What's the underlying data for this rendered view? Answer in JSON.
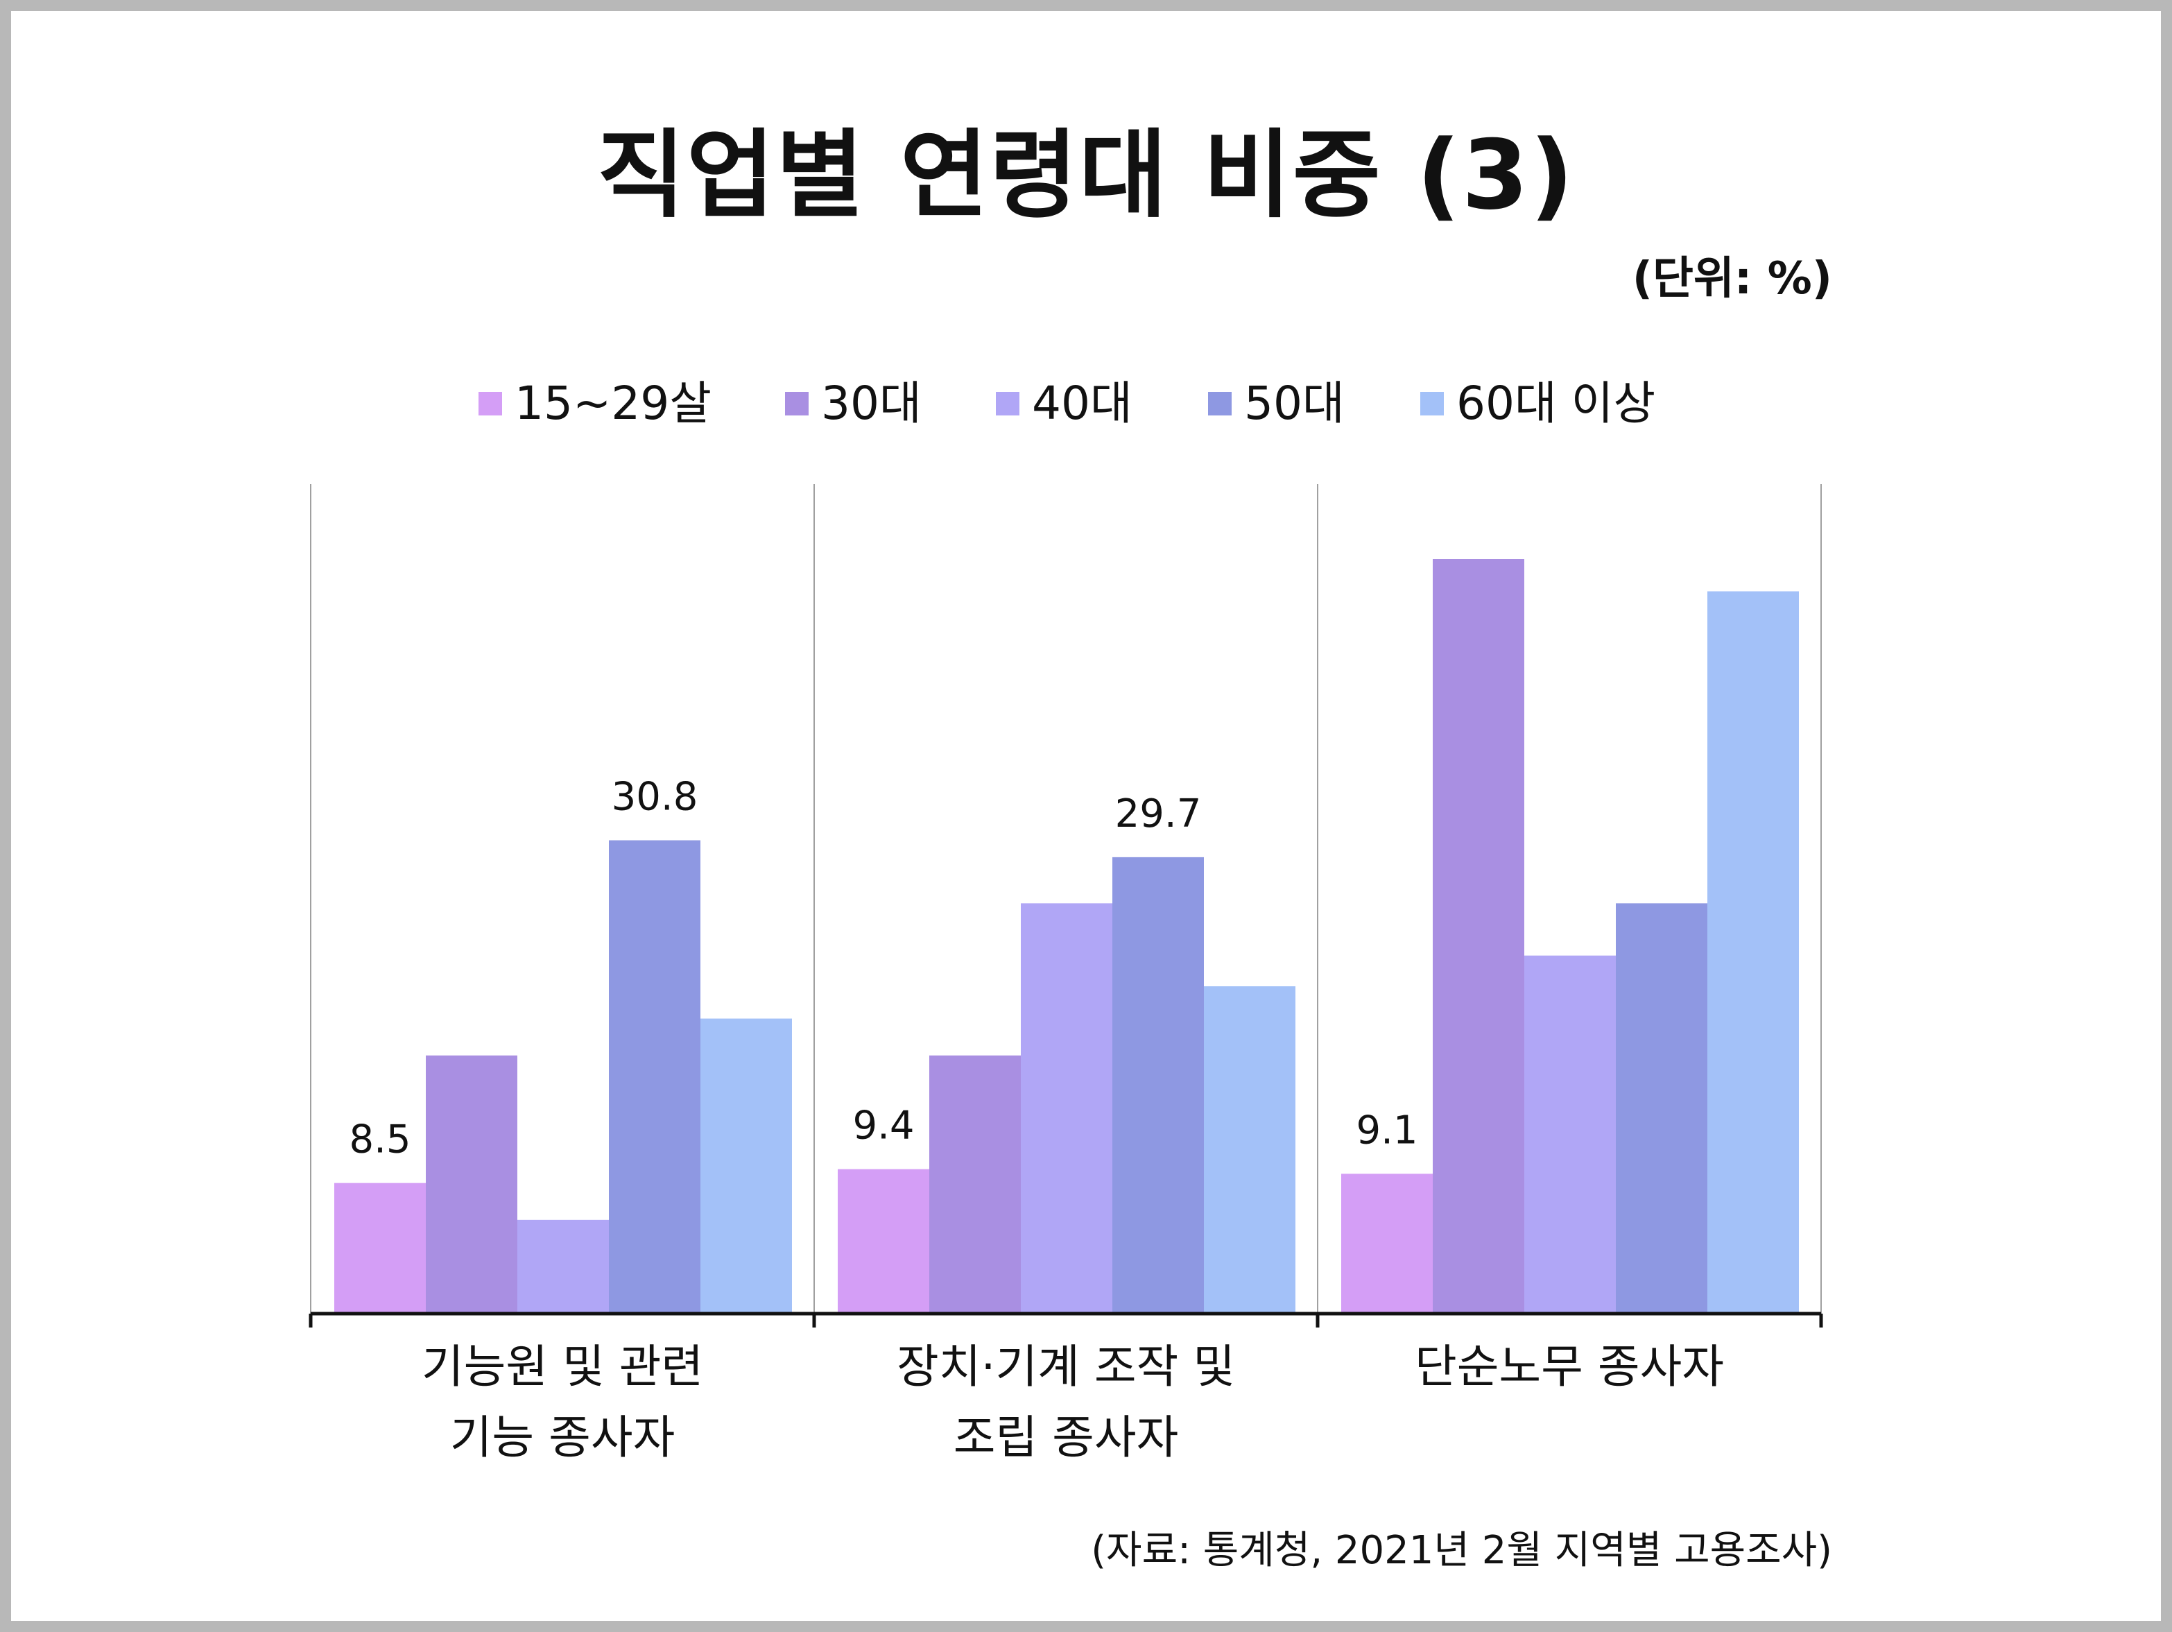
{
  "chart_data": {
    "type": "bar",
    "title": "직업별 연령대 비중 (3)",
    "unit_label": "(단위: %)",
    "source": "(자료: 통계청, 2021년 2월 지역별 고용조사)",
    "categories": [
      [
        "기능원 및 관련",
        "기능 종사자"
      ],
      [
        "장치·기계 조작 및",
        "조립 종사자"
      ],
      [
        "단순노무 종사자"
      ]
    ],
    "series": [
      {
        "name": "15~29살",
        "color": "#d49ef6",
        "values": [
          8.5,
          9.4,
          9.1
        ]
      },
      {
        "name": "30대",
        "color": "#a98fe2",
        "values": [
          16.8,
          16.8,
          49.1
        ]
      },
      {
        "name": "40대",
        "color": "#b0a6f6",
        "values": [
          6.1,
          26.7,
          23.3
        ]
      },
      {
        "name": "50대",
        "color": "#8e98e2",
        "values": [
          30.8,
          29.7,
          26.7
        ]
      },
      {
        "name": "60대 이상",
        "color": "#a3c1f8",
        "values": [
          19.2,
          21.3,
          47.0
        ]
      }
    ],
    "data_labels": [
      [
        "8.5",
        null,
        null,
        "30.8",
        null
      ],
      [
        "9.4",
        null,
        null,
        "29.7",
        null
      ],
      [
        "9.1",
        null,
        null,
        null,
        null
      ]
    ],
    "ylim": [
      0,
      55
    ],
    "grid": "vertical-separators",
    "legend": "top"
  }
}
